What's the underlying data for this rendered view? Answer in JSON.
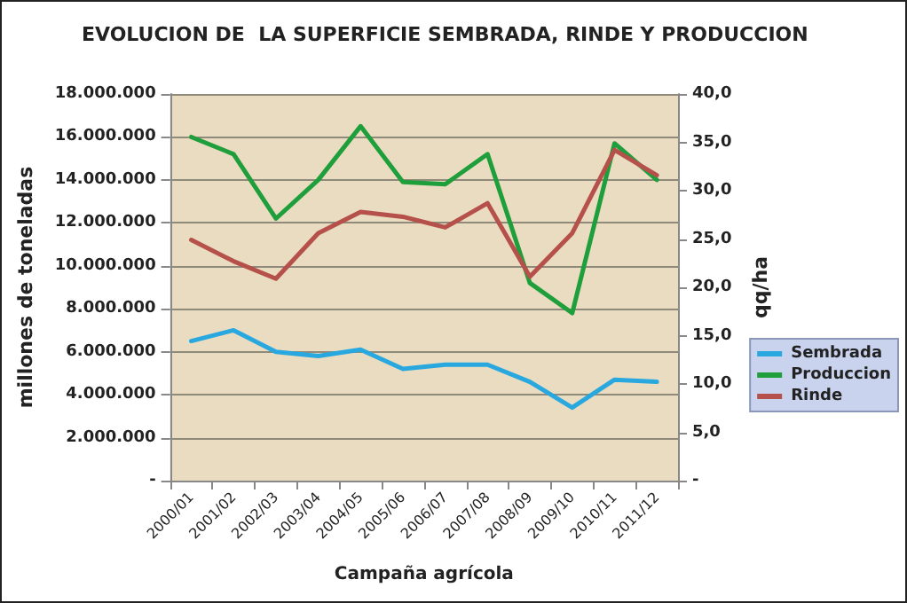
{
  "chart_data": {
    "type": "line",
    "title": "EVOLUCION DE  LA SUPERFICIE SEMBRADA, RINDE Y PRODUCCION",
    "xlabel": "Campaña agrícola",
    "ylabel": "millones de toneladas",
    "y2label": "qq/ha",
    "categories": [
      "2000/01",
      "2001/02",
      "2002/03",
      "2003/04",
      "2004/05",
      "2005/06",
      "2006/07",
      "2007/08",
      "2008/09",
      "2009/10",
      "2010/11",
      "2011/12"
    ],
    "series": [
      {
        "name": "Sembrada",
        "color": "#29a8e0",
        "values": [
          6500000,
          7000000,
          6000000,
          5800000,
          6100000,
          5200000,
          5400000,
          5400000,
          4600000,
          3400000,
          4700000,
          4600000
        ]
      },
      {
        "name": "Produccion",
        "color": "#1f9e3c",
        "values": [
          16000000,
          15200000,
          12200000,
          14000000,
          16500000,
          13900000,
          13800000,
          15200000,
          9200000,
          7800000,
          15700000,
          14000000
        ]
      },
      {
        "name": "Rinde",
        "color": "#b5514a",
        "axis": "y2",
        "values": [
          24.9,
          22.7,
          20.9,
          25.6,
          27.8,
          27.3,
          26.2,
          28.7,
          21.1,
          25.6,
          34.2,
          31.6
        ]
      }
    ],
    "ylim": [
      0,
      18000000
    ],
    "yticks": [
      {
        "value": 0,
        "label": "-"
      },
      {
        "value": 2000000,
        "label": "2.000.000"
      },
      {
        "value": 4000000,
        "label": "4.000.000"
      },
      {
        "value": 6000000,
        "label": "6.000.000"
      },
      {
        "value": 8000000,
        "label": "8.000.000"
      },
      {
        "value": 10000000,
        "label": "10.000.000"
      },
      {
        "value": 12000000,
        "label": "12.000.000"
      },
      {
        "value": 14000000,
        "label": "14.000.000"
      },
      {
        "value": 16000000,
        "label": "16.000.000"
      },
      {
        "value": 18000000,
        "label": "18.000.000"
      }
    ],
    "y2lim": [
      0,
      40
    ],
    "y2ticks": [
      {
        "value": 0,
        "label": "-"
      },
      {
        "value": 5,
        "label": "5,0"
      },
      {
        "value": 10,
        "label": "10,0"
      },
      {
        "value": 15,
        "label": "15,0"
      },
      {
        "value": 20,
        "label": "20,0"
      },
      {
        "value": 25,
        "label": "25,0"
      },
      {
        "value": 30,
        "label": "30,0"
      },
      {
        "value": 35,
        "label": "35,0"
      },
      {
        "value": 40,
        "label": "40,0"
      }
    ],
    "grid": "y",
    "legend": "right",
    "marker": "none",
    "line_style": "solid"
  }
}
